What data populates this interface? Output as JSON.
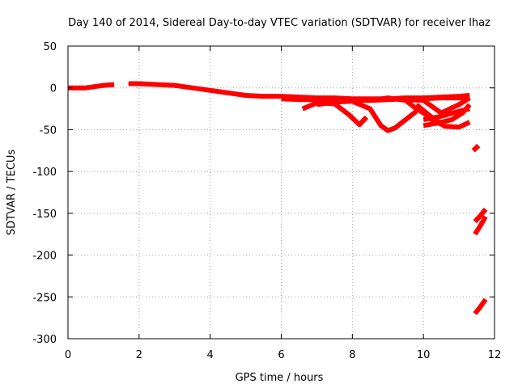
{
  "chart_data": {
    "type": "line",
    "title": "Day 140 of 2014, Sidereal Day-to-day VTEC variation (SDTVAR) for receiver lhaz",
    "xlabel": "GPS time / hours",
    "ylabel": "SDTVAR / TECUs",
    "xlim": [
      0,
      12
    ],
    "ylim": [
      -300,
      50
    ],
    "xticks": [
      0,
      2,
      4,
      6,
      8,
      10,
      12
    ],
    "yticks": [
      50,
      0,
      -50,
      -100,
      -150,
      -200,
      -250,
      -300
    ],
    "grid": true,
    "series": [
      {
        "name": "main-trend",
        "x": [
          0,
          0.5,
          1.0,
          1.3
        ],
        "y": [
          0,
          0,
          3,
          4
        ]
      },
      {
        "name": "main-trend-2",
        "x": [
          1.7,
          2.0,
          2.5,
          3.0,
          3.5,
          4.0,
          4.5,
          5.0,
          5.5,
          6.0,
          6.5,
          7.0,
          7.5,
          8.0,
          8.5,
          9.0,
          9.5,
          10.0,
          10.5,
          11.0,
          11.3
        ],
        "y": [
          5,
          5,
          4,
          3,
          0,
          -3,
          -6,
          -9,
          -10,
          -10,
          -11,
          -12,
          -12,
          -13,
          -13,
          -13,
          -12,
          -12,
          -11,
          -10,
          -9
        ]
      },
      {
        "name": "branch-a",
        "x": [
          6.0,
          6.5,
          7.0,
          7.5,
          8.0,
          8.5,
          9.0,
          9.5,
          10.0,
          10.5,
          11.0,
          11.3
        ],
        "y": [
          -13,
          -14,
          -14,
          -13,
          -14,
          -15,
          -14,
          -13,
          -13,
          -12,
          -12,
          -12
        ]
      },
      {
        "name": "branch-b",
        "x": [
          6.6,
          7.0,
          7.5,
          7.9,
          8.2,
          8.4
        ],
        "y": [
          -25,
          -18,
          -19,
          -32,
          -44,
          -35
        ]
      },
      {
        "name": "branch-c",
        "x": [
          7.0,
          7.5,
          8.0,
          8.5,
          8.8,
          9.0,
          9.2,
          9.5,
          9.8
        ],
        "y": [
          -20,
          -17,
          -16,
          -25,
          -45,
          -51,
          -48,
          -38,
          -28
        ]
      },
      {
        "name": "branch-d",
        "x": [
          8.0,
          8.5,
          9.0,
          9.5,
          9.8,
          10.0,
          10.3,
          10.6
        ],
        "y": [
          -15,
          -15,
          -12,
          -15,
          -25,
          -30,
          -40,
          -45
        ]
      },
      {
        "name": "branch-e",
        "x": [
          9.5,
          10.0,
          10.5,
          11.0,
          11.3
        ],
        "y": [
          -14,
          -15,
          -30,
          -20,
          -12
        ]
      },
      {
        "name": "branch-f",
        "x": [
          9.8,
          10.2,
          10.6,
          11.0,
          11.3
        ],
        "y": [
          -20,
          -34,
          -46,
          -47,
          -41
        ]
      },
      {
        "name": "branch-g",
        "x": [
          10.0,
          10.4,
          10.8,
          11.1,
          11.3
        ],
        "y": [
          -45,
          -42,
          -38,
          -30,
          -20
        ]
      },
      {
        "name": "branch-h",
        "x": [
          10.0,
          10.5,
          11.0,
          11.3
        ],
        "y": [
          -38,
          -34,
          -28,
          -25
        ]
      },
      {
        "name": "tail-1",
        "x": [
          11.4,
          11.55
        ],
        "y": [
          -75,
          -69
        ]
      },
      {
        "name": "tail-2",
        "x": [
          11.45,
          11.6,
          11.75
        ],
        "y": [
          -160,
          -153,
          -145
        ]
      },
      {
        "name": "tail-3",
        "x": [
          11.45,
          11.6,
          11.75
        ],
        "y": [
          -175,
          -165,
          -154
        ]
      },
      {
        "name": "tail-4",
        "x": [
          11.45,
          11.6,
          11.75
        ],
        "y": [
          -270,
          -262,
          -253
        ]
      }
    ]
  }
}
